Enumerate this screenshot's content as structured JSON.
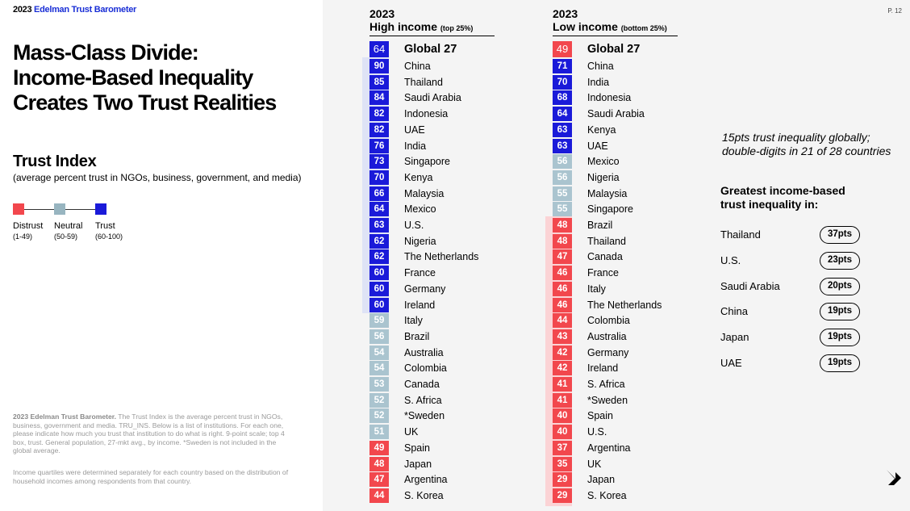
{
  "brand": {
    "year": "2023",
    "name": "Edelman Trust Barometer"
  },
  "page_number": "P. 12",
  "headline": [
    "Mass-Class Divide:",
    "Income-Based Inequality",
    "Creates Two Trust Realities"
  ],
  "trust_index": {
    "title": "Trust Index",
    "subtitle": "(average percent trust in NGOs, business, government, and media)"
  },
  "legend": [
    {
      "label": "Distrust",
      "range": "(1-49)",
      "color": "#f2474d"
    },
    {
      "label": "Neutral",
      "range": "(50-59)",
      "color": "#98b5c0"
    },
    {
      "label": "Trust",
      "range": "(60-100)",
      "color": "#1a1ad9"
    }
  ],
  "colors": {
    "distrust": "#f2474d",
    "neutral": "#aac4cf",
    "trust": "#1a1ad9",
    "band_trust": "#dfe3f6",
    "band_distrust": "#fbd3d5"
  },
  "footnote": {
    "bold": "2023 Edelman Trust Barometer.",
    "text": " The Trust Index is the average percent trust in NGOs, business, government and media. TRU_INS. Below is a list of institutions. For each one, please indicate how much you trust that institution to do what is right. 9-point scale; top 4 box, trust. General population, 27-mkt avg., by income. *Sweden is not included in the global average.",
    "text2": "Income quartiles were determined separately for each country based on the distribution of household incomes among respondents from that country."
  },
  "high_income": {
    "year": "2023",
    "title": "High income",
    "qualifier": "(top 25%)",
    "global": {
      "value": "64",
      "name": "Global 27"
    },
    "rows": [
      {
        "value": "90",
        "name": "China"
      },
      {
        "value": "85",
        "name": "Thailand"
      },
      {
        "value": "84",
        "name": "Saudi Arabia"
      },
      {
        "value": "82",
        "name": "Indonesia"
      },
      {
        "value": "82",
        "name": "UAE"
      },
      {
        "value": "76",
        "name": "India"
      },
      {
        "value": "73",
        "name": "Singapore"
      },
      {
        "value": "70",
        "name": "Kenya"
      },
      {
        "value": "66",
        "name": "Malaysia"
      },
      {
        "value": "64",
        "name": "Mexico"
      },
      {
        "value": "63",
        "name": "U.S."
      },
      {
        "value": "62",
        "name": "Nigeria"
      },
      {
        "value": "62",
        "name": "The Netherlands"
      },
      {
        "value": "60",
        "name": "France"
      },
      {
        "value": "60",
        "name": "Germany"
      },
      {
        "value": "60",
        "name": "Ireland"
      },
      {
        "value": "59",
        "name": "Italy"
      },
      {
        "value": "56",
        "name": "Brazil"
      },
      {
        "value": "54",
        "name": "Australia"
      },
      {
        "value": "54",
        "name": "Colombia"
      },
      {
        "value": "53",
        "name": "Canada"
      },
      {
        "value": "52",
        "name": "S. Africa"
      },
      {
        "value": "52",
        "name": "*Sweden"
      },
      {
        "value": "51",
        "name": "UK"
      },
      {
        "value": "49",
        "name": "Spain"
      },
      {
        "value": "48",
        "name": "Japan"
      },
      {
        "value": "47",
        "name": "Argentina"
      },
      {
        "value": "44",
        "name": "S. Korea"
      }
    ]
  },
  "low_income": {
    "year": "2023",
    "title": "Low income",
    "qualifier": "(bottom 25%)",
    "global": {
      "value": "49",
      "name": "Global 27"
    },
    "rows": [
      {
        "value": "71",
        "name": "China"
      },
      {
        "value": "70",
        "name": "India"
      },
      {
        "value": "68",
        "name": "Indonesia"
      },
      {
        "value": "64",
        "name": "Saudi Arabia"
      },
      {
        "value": "63",
        "name": "Kenya"
      },
      {
        "value": "63",
        "name": "UAE"
      },
      {
        "value": "56",
        "name": "Mexico"
      },
      {
        "value": "56",
        "name": "Nigeria"
      },
      {
        "value": "55",
        "name": "Malaysia"
      },
      {
        "value": "55",
        "name": "Singapore"
      },
      {
        "value": "48",
        "name": "Brazil"
      },
      {
        "value": "48",
        "name": "Thailand"
      },
      {
        "value": "47",
        "name": "Canada"
      },
      {
        "value": "46",
        "name": "France"
      },
      {
        "value": "46",
        "name": "Italy"
      },
      {
        "value": "46",
        "name": "The Netherlands"
      },
      {
        "value": "44",
        "name": "Colombia"
      },
      {
        "value": "43",
        "name": "Australia"
      },
      {
        "value": "42",
        "name": "Germany"
      },
      {
        "value": "42",
        "name": "Ireland"
      },
      {
        "value": "41",
        "name": "S. Africa"
      },
      {
        "value": "41",
        "name": "*Sweden"
      },
      {
        "value": "40",
        "name": "Spain"
      },
      {
        "value": "40",
        "name": "U.S."
      },
      {
        "value": "37",
        "name": "Argentina"
      },
      {
        "value": "35",
        "name": "UK"
      },
      {
        "value": "29",
        "name": "Japan"
      },
      {
        "value": "29",
        "name": "S. Korea"
      }
    ]
  },
  "note": "15pts trust inequality globally; double-digits in 21 of 28 countries",
  "greatest": {
    "title_line1": "Greatest income-based",
    "title_line2": "trust inequality in:"
  },
  "inequality": [
    {
      "country": "Thailand",
      "pts": "37pts"
    },
    {
      "country": "U.S.",
      "pts": "23pts"
    },
    {
      "country": "Saudi Arabia",
      "pts": "20pts"
    },
    {
      "country": "China",
      "pts": "19pts"
    },
    {
      "country": "Japan",
      "pts": "19pts"
    },
    {
      "country": "UAE",
      "pts": "19pts"
    }
  ],
  "arrow_icon": "arrow-down-right-icon"
}
